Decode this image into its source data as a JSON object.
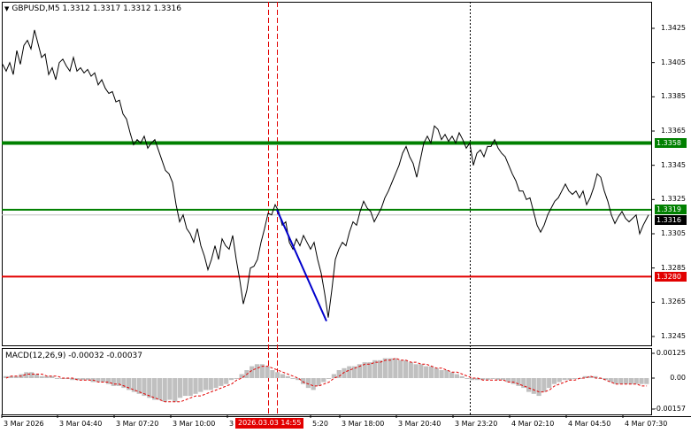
{
  "header": {
    "symbol_line": "GBPUSD,M5  1.3312 1.3317 1.3312 1.3316",
    "arrow": "▼"
  },
  "macd": {
    "label": "MACD(12,26,9) -0.00032 -0.00037",
    "axis": [
      "0.00125",
      "0.00",
      "-0.00157"
    ]
  },
  "price_axis": [
    "1.3425",
    "1.3405",
    "1.3385",
    "1.3365",
    "1.3345",
    "1.3325",
    "1.3305",
    "1.3285",
    "1.3265",
    "1.3245"
  ],
  "levels": {
    "resistance": "1.3358",
    "mid": "1.3319",
    "current": "1.3316",
    "support": "1.3280"
  },
  "colors": {
    "resistance": "#008000",
    "mid": "#008000",
    "support": "#e20000",
    "trend": "#0000cc",
    "histogram": "#c0c0c0",
    "signal": "#e20000"
  },
  "time_axis": [
    "3 Mar 2026",
    "3 Mar 04:40",
    "3 Mar 07:20",
    "3 Mar 10:00",
    "3 Mar 18:00",
    "3 Mar 20:40",
    "3 Mar 23:20",
    "4 Mar 02:10",
    "4 Mar 04:50",
    "4 Mar 07:30"
  ],
  "time_badge": "2026.03.03 14:55",
  "time_partial": [
    "3 2",
    "5:20"
  ],
  "chart_data": {
    "type": "line",
    "symbol": "GBPUSD",
    "timeframe": "M5",
    "ohlc_header": {
      "open": 1.3312,
      "high": 1.3317,
      "low": 1.3312,
      "close": 1.3316
    },
    "ylim": [
      1.324,
      1.3435
    ],
    "price_points": [
      [
        0,
        1.3404
      ],
      [
        4,
        1.34
      ],
      [
        8,
        1.3405
      ],
      [
        12,
        1.3398
      ],
      [
        16,
        1.3412
      ],
      [
        20,
        1.3404
      ],
      [
        24,
        1.3415
      ],
      [
        28,
        1.3418
      ],
      [
        32,
        1.3413
      ],
      [
        36,
        1.3424
      ],
      [
        40,
        1.3416
      ],
      [
        44,
        1.3408
      ],
      [
        48,
        1.341
      ],
      [
        52,
        1.3398
      ],
      [
        56,
        1.3402
      ],
      [
        60,
        1.3395
      ],
      [
        64,
        1.3405
      ],
      [
        68,
        1.3407
      ],
      [
        72,
        1.3403
      ],
      [
        76,
        1.34
      ],
      [
        80,
        1.3408
      ],
      [
        84,
        1.34
      ],
      [
        88,
        1.3402
      ],
      [
        92,
        1.3399
      ],
      [
        96,
        1.3401
      ],
      [
        100,
        1.3397
      ],
      [
        104,
        1.3399
      ],
      [
        108,
        1.3392
      ],
      [
        112,
        1.3395
      ],
      [
        116,
        1.339
      ],
      [
        120,
        1.3387
      ],
      [
        124,
        1.3388
      ],
      [
        128,
        1.3382
      ],
      [
        132,
        1.3383
      ],
      [
        136,
        1.3375
      ],
      [
        140,
        1.3372
      ],
      [
        144,
        1.3364
      ],
      [
        148,
        1.3357
      ],
      [
        152,
        1.336
      ],
      [
        156,
        1.3358
      ],
      [
        160,
        1.3362
      ],
      [
        164,
        1.3355
      ],
      [
        168,
        1.3358
      ],
      [
        172,
        1.336
      ],
      [
        176,
        1.3354
      ],
      [
        180,
        1.3348
      ],
      [
        184,
        1.3342
      ],
      [
        188,
        1.334
      ],
      [
        192,
        1.3335
      ],
      [
        196,
        1.3322
      ],
      [
        200,
        1.3312
      ],
      [
        204,
        1.3316
      ],
      [
        208,
        1.3308
      ],
      [
        212,
        1.3305
      ],
      [
        216,
        1.33
      ],
      [
        220,
        1.3308
      ],
      [
        224,
        1.3298
      ],
      [
        228,
        1.3292
      ],
      [
        232,
        1.3284
      ],
      [
        236,
        1.329
      ],
      [
        240,
        1.3298
      ],
      [
        244,
        1.329
      ],
      [
        248,
        1.3302
      ],
      [
        252,
        1.3298
      ],
      [
        256,
        1.3296
      ],
      [
        260,
        1.3304
      ],
      [
        264,
        1.329
      ],
      [
        268,
        1.3278
      ],
      [
        272,
        1.3264
      ],
      [
        276,
        1.3272
      ],
      [
        280,
        1.3285
      ],
      [
        284,
        1.3286
      ],
      [
        288,
        1.329
      ],
      [
        292,
        1.33
      ],
      [
        296,
        1.3308
      ],
      [
        300,
        1.3317
      ],
      [
        304,
        1.3316
      ],
      [
        308,
        1.3322
      ],
      [
        312,
        1.3318
      ],
      [
        316,
        1.331
      ],
      [
        320,
        1.3312
      ],
      [
        324,
        1.33
      ],
      [
        328,
        1.3296
      ],
      [
        332,
        1.3302
      ],
      [
        336,
        1.3298
      ],
      [
        340,
        1.3304
      ],
      [
        344,
        1.33
      ],
      [
        348,
        1.3296
      ],
      [
        352,
        1.33
      ],
      [
        356,
        1.329
      ],
      [
        360,
        1.3282
      ],
      [
        364,
        1.327
      ],
      [
        368,
        1.3256
      ],
      [
        372,
        1.3272
      ],
      [
        376,
        1.329
      ],
      [
        380,
        1.3296
      ],
      [
        384,
        1.33
      ],
      [
        388,
        1.3298
      ],
      [
        392,
        1.3306
      ],
      [
        396,
        1.3312
      ],
      [
        400,
        1.331
      ],
      [
        404,
        1.3318
      ],
      [
        408,
        1.3324
      ],
      [
        412,
        1.332
      ],
      [
        416,
        1.3318
      ],
      [
        420,
        1.3312
      ],
      [
        424,
        1.3316
      ],
      [
        428,
        1.332
      ],
      [
        432,
        1.3326
      ],
      [
        436,
        1.333
      ],
      [
        440,
        1.3335
      ],
      [
        444,
        1.334
      ],
      [
        448,
        1.3345
      ],
      [
        452,
        1.3352
      ],
      [
        456,
        1.3356
      ],
      [
        460,
        1.335
      ],
      [
        464,
        1.3346
      ],
      [
        468,
        1.3338
      ],
      [
        472,
        1.3348
      ],
      [
        476,
        1.3358
      ],
      [
        480,
        1.3362
      ],
      [
        484,
        1.3358
      ],
      [
        488,
        1.3368
      ],
      [
        492,
        1.3366
      ],
      [
        496,
        1.336
      ],
      [
        500,
        1.3363
      ],
      [
        504,
        1.3359
      ],
      [
        508,
        1.3362
      ],
      [
        512,
        1.3358
      ],
      [
        516,
        1.3364
      ],
      [
        520,
        1.336
      ],
      [
        524,
        1.3355
      ],
      [
        528,
        1.3358
      ],
      [
        532,
        1.3345
      ],
      [
        536,
        1.3352
      ],
      [
        540,
        1.3354
      ],
      [
        544,
        1.335
      ],
      [
        548,
        1.3356
      ],
      [
        552,
        1.3356
      ],
      [
        556,
        1.336
      ],
      [
        560,
        1.3355
      ],
      [
        564,
        1.3352
      ],
      [
        568,
        1.335
      ],
      [
        572,
        1.3345
      ],
      [
        576,
        1.334
      ],
      [
        580,
        1.3336
      ],
      [
        584,
        1.333
      ],
      [
        588,
        1.333
      ],
      [
        592,
        1.3325
      ],
      [
        596,
        1.3326
      ],
      [
        600,
        1.3318
      ],
      [
        604,
        1.331
      ],
      [
        608,
        1.3306
      ],
      [
        612,
        1.331
      ],
      [
        616,
        1.3316
      ],
      [
        620,
        1.332
      ],
      [
        624,
        1.3324
      ],
      [
        628,
        1.3326
      ],
      [
        632,
        1.333
      ],
      [
        636,
        1.3334
      ],
      [
        640,
        1.333
      ],
      [
        644,
        1.3328
      ],
      [
        648,
        1.333
      ],
      [
        652,
        1.3326
      ],
      [
        656,
        1.333
      ],
      [
        660,
        1.3322
      ],
      [
        664,
        1.3326
      ],
      [
        668,
        1.3332
      ],
      [
        672,
        1.334
      ],
      [
        676,
        1.3338
      ],
      [
        680,
        1.333
      ],
      [
        684,
        1.3324
      ],
      [
        688,
        1.3316
      ],
      [
        692,
        1.3311
      ],
      [
        696,
        1.3315
      ],
      [
        700,
        1.3318
      ],
      [
        704,
        1.3314
      ],
      [
        708,
        1.3312
      ],
      [
        712,
        1.3314
      ],
      [
        716,
        1.3316
      ],
      [
        720,
        1.3305
      ],
      [
        724,
        1.331
      ],
      [
        728,
        1.3314
      ],
      [
        730,
        1.3316
      ]
    ],
    "macd_histogram": [
      0.0001,
      0.0001,
      0.0001,
      0.0002,
      0.0003,
      0.0003,
      0.0002,
      0.0001,
      0.0001,
      0.0001,
      0.0,
      0.0,
      0.0,
      -0.0001,
      -0.0001,
      -0.0001,
      -0.0001,
      -0.0002,
      -0.0002,
      -0.0002,
      -0.0003,
      -0.0004,
      -0.0004,
      -0.0005,
      -0.0006,
      -0.0007,
      -0.0008,
      -0.0009,
      -0.001,
      -0.0011,
      -0.0011,
      -0.0012,
      -0.0011,
      -0.0012,
      -0.001,
      -0.0009,
      -0.0009,
      -0.0008,
      -0.0007,
      -0.0006,
      -0.0006,
      -0.0005,
      -0.0004,
      -0.0003,
      -0.0001,
      0.0,
      0.0002,
      0.0004,
      0.0006,
      0.0007,
      0.0007,
      0.0006,
      0.0004,
      0.0003,
      0.0002,
      0.0001,
      0.0,
      -0.0001,
      -0.0003,
      -0.0005,
      -0.0006,
      -0.0004,
      -0.0002,
      0.0,
      0.0002,
      0.0004,
      0.0005,
      0.0006,
      0.0006,
      0.0007,
      0.0008,
      0.0008,
      0.0009,
      0.0009,
      0.001,
      0.001,
      0.001,
      0.0009,
      0.0009,
      0.0008,
      0.0007,
      0.0007,
      0.0006,
      0.0006,
      0.0005,
      0.0004,
      0.0004,
      0.0003,
      0.0002,
      0.0001,
      0.0,
      -0.0001,
      -0.0001,
      -0.0001,
      -0.0001,
      0.0,
      -0.0001,
      -0.0001,
      -0.0002,
      -0.0003,
      -0.0004,
      -0.0005,
      -0.0007,
      -0.0008,
      -0.0009,
      -0.0007,
      -0.0005,
      -0.0003,
      -0.0002,
      -0.0001,
      -0.0001,
      0.0,
      0.0,
      0.0001,
      0.0001,
      0.0001,
      0.0,
      -0.0001,
      -0.0002,
      -0.0003,
      -0.0003,
      -0.0003,
      -0.0003,
      -0.0003,
      -0.0003,
      -0.0003
    ],
    "macd_signal": [
      0.0,
      0.0001,
      0.0001,
      0.0001,
      0.0002,
      0.0002,
      0.0002,
      0.0002,
      0.0001,
      0.0001,
      0.0001,
      0.0,
      0.0,
      0.0,
      -0.0001,
      -0.0001,
      -0.0001,
      -0.0001,
      -0.0002,
      -0.0002,
      -0.0002,
      -0.0003,
      -0.0003,
      -0.0004,
      -0.0005,
      -0.0006,
      -0.0007,
      -0.0008,
      -0.0009,
      -0.001,
      -0.0011,
      -0.0012,
      -0.0012,
      -0.0012,
      -0.0012,
      -0.0011,
      -0.001,
      -0.0009,
      -0.0009,
      -0.0008,
      -0.0007,
      -0.0006,
      -0.0005,
      -0.0004,
      -0.0003,
      -0.0001,
      0.0,
      0.0002,
      0.0004,
      0.0005,
      0.0006,
      0.0006,
      0.0005,
      0.0004,
      0.0003,
      0.0002,
      0.0001,
      0.0,
      -0.0002,
      -0.0003,
      -0.0004,
      -0.0004,
      -0.0003,
      -0.0002,
      0.0,
      0.0001,
      0.0003,
      0.0004,
      0.0005,
      0.0006,
      0.0007,
      0.0007,
      0.0008,
      0.0008,
      0.0009,
      0.0009,
      0.001,
      0.0009,
      0.0009,
      0.0008,
      0.0008,
      0.0007,
      0.0007,
      0.0006,
      0.0005,
      0.0005,
      0.0004,
      0.0003,
      0.0003,
      0.0002,
      0.0001,
      0.0,
      0.0,
      -0.0001,
      -0.0001,
      -0.0001,
      -0.0001,
      -0.0001,
      -0.0002,
      -0.0002,
      -0.0003,
      -0.0004,
      -0.0005,
      -0.0006,
      -0.0007,
      -0.0007,
      -0.0006,
      -0.0004,
      -0.0003,
      -0.0002,
      -0.0001,
      -0.0001,
      0.0,
      0.0,
      0.0001,
      0.0,
      0.0,
      -0.0001,
      -0.0002,
      -0.0003,
      -0.0003,
      -0.0003,
      -0.0003,
      -0.0003,
      -0.0004,
      -0.0004
    ],
    "macd_ylim": [
      -0.00157,
      0.00125
    ],
    "horizontal_levels": [
      1.3358,
      1.3319,
      1.328
    ],
    "trend_line": [
      [
        1.3319,
        1.3254
      ]
    ]
  }
}
